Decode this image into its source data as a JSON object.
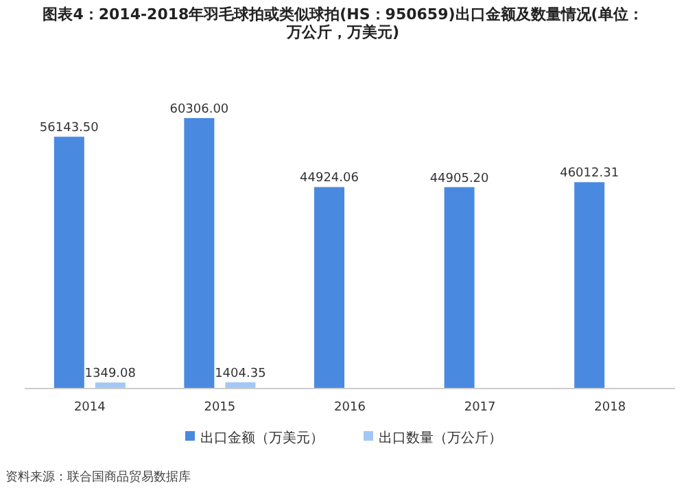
{
  "chart_data": {
    "type": "bar",
    "title": "图表4：2014-2018年羽毛球拍或类似球拍(HS：950659)出口金额及数量情况(单位：万公斤，万美元)",
    "categories": [
      "2014",
      "2015",
      "2016",
      "2017",
      "2018"
    ],
    "series": [
      {
        "name": "出口金额（万美元）",
        "color": "#4a89e0",
        "values": [
          56143.5,
          60306.0,
          44924.06,
          44905.2,
          46012.31
        ],
        "value_labels": [
          "56143.50",
          "60306.00",
          "44924.06",
          "44905.20",
          "46012.31"
        ]
      },
      {
        "name": "出口数量（万公斤）",
        "color": "#a3c8f5",
        "values": [
          1349.08,
          1404.35,
          null,
          null,
          null
        ],
        "value_labels": [
          "1349.08",
          "1404.35",
          null,
          null,
          null
        ]
      }
    ],
    "legend": "bottom",
    "annotations": [
      "资料来源：联合国商品贸易数据库"
    ]
  }
}
